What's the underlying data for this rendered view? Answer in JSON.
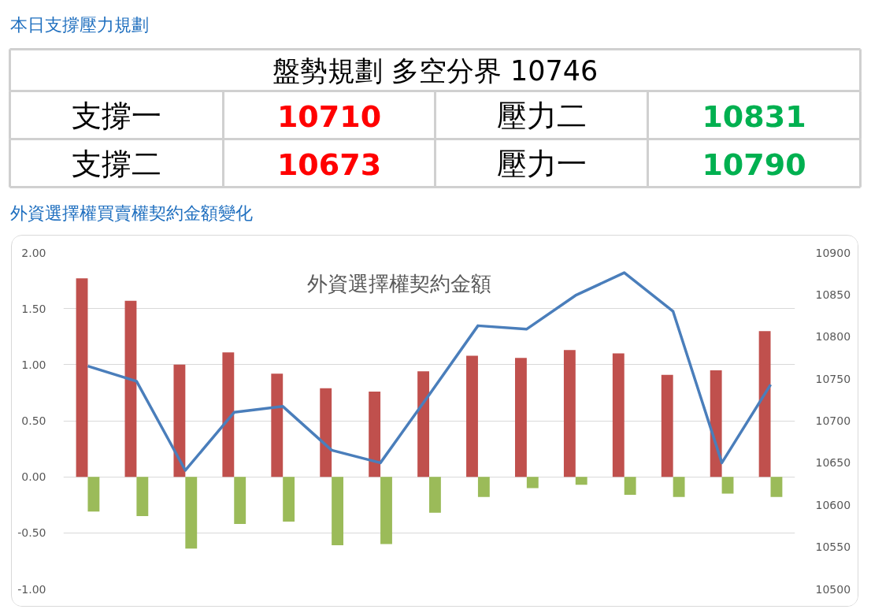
{
  "chart_data": [
    {
      "type": "other",
      "title": "本日支撐壓力規劃",
      "subtitle": "盤勢規劃 多空分界 10746",
      "categories": [
        "支撐一",
        "壓力二",
        "支撐二",
        "壓力一"
      ],
      "values": [
        10710,
        10831,
        10673,
        10790
      ],
      "colors": [
        "#ff0000",
        "#00b050",
        "#ff0000",
        "#00b050"
      ],
      "data_labels": true
    },
    {
      "type": "bar",
      "title": "外資選擇權買賣權契約金額變化",
      "subtitle": "外資選擇權契約金額",
      "categories": [
        null,
        null,
        null,
        null,
        null,
        null,
        null,
        null,
        null,
        null,
        null,
        null,
        null,
        null,
        null
      ],
      "series": [
        {
          "color": "#c0504d",
          "values": [
            1.77,
            1.57,
            1.0,
            1.11,
            0.92,
            0.79,
            0.76,
            0.94,
            1.08,
            1.06,
            1.13,
            1.1,
            0.91,
            0.95,
            1.3
          ]
        },
        {
          "color": "#9bbb59",
          "values": [
            -0.31,
            -0.35,
            -0.64,
            -0.42,
            -0.4,
            -0.61,
            -0.6,
            -0.32,
            -0.18,
            -0.1,
            -0.07,
            -0.16,
            -0.18,
            -0.15,
            -0.18
          ]
        },
        {
          "type": "line",
          "axis": "y2",
          "color": "#4a7ebb",
          "values": [
            10765,
            10747,
            10641,
            10710,
            10717,
            10665,
            10650,
            10731,
            10813,
            10809,
            10849,
            10876,
            10830,
            10650,
            10743
          ]
        }
      ],
      "ylim": [
        -1,
        2
      ],
      "yticks": [
        {
          "value": -1,
          "label": "-1.00"
        },
        {
          "value": -0.5,
          "label": "-0.50"
        },
        {
          "value": 0,
          "label": "0.00"
        },
        {
          "value": 0.5,
          "label": "0.50"
        },
        {
          "value": 1,
          "label": "1.00"
        },
        {
          "value": 1.5,
          "label": "1.50"
        },
        {
          "value": 2,
          "label": "2.00"
        }
      ],
      "y2lim": [
        10500,
        10900
      ],
      "y2ticks": [
        10500,
        10550,
        10600,
        10650,
        10700,
        10750,
        10800,
        10850,
        10900
      ],
      "grid": "y"
    }
  ]
}
